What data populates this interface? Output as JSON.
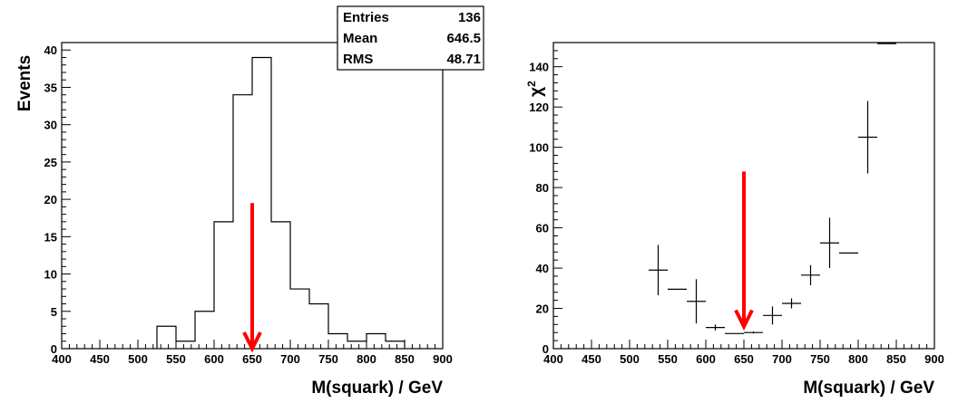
{
  "chart_data": [
    {
      "type": "histogram",
      "xlabel": "M(squark) / GeV",
      "ylabel": "Events",
      "xlim": [
        400,
        900
      ],
      "ylim": [
        0,
        41
      ],
      "xticks": [
        400,
        450,
        500,
        550,
        600,
        650,
        700,
        750,
        800,
        850,
        900
      ],
      "yticks": [
        0,
        5,
        10,
        15,
        20,
        25,
        30,
        35,
        40
      ],
      "bin_width": 25,
      "bins_low_edge": [
        525,
        550,
        575,
        600,
        625,
        650,
        675,
        700,
        725,
        750,
        775,
        800,
        825
      ],
      "values": [
        3,
        1,
        5,
        17,
        34,
        39,
        17,
        8,
        6,
        2,
        1,
        2,
        1
      ],
      "stats_box": {
        "rows": [
          {
            "label": "Entries",
            "value": "136"
          },
          {
            "label": "Mean",
            "value": "646.5"
          },
          {
            "label": "RMS",
            "value": "48.71"
          }
        ]
      },
      "arrow": {
        "x": 650,
        "y_top": 19.5,
        "y_tip": 0,
        "color": "#ff0000"
      }
    },
    {
      "type": "scatter",
      "xlabel": "M(squark) / GeV",
      "ylabel": "χ2",
      "xlim": [
        400,
        900
      ],
      "ylim": [
        0,
        152
      ],
      "xticks": [
        400,
        450,
        500,
        550,
        600,
        650,
        700,
        750,
        800,
        850,
        900
      ],
      "yticks": [
        0,
        20,
        40,
        60,
        80,
        100,
        120,
        140
      ],
      "x_halfwidth": 12.5,
      "points": [
        {
          "x": 537.5,
          "y": 39,
          "yerr": 12.5
        },
        {
          "x": 562.5,
          "y": 29.5,
          "yerr": 0
        },
        {
          "x": 587.5,
          "y": 23.5,
          "yerr": 11
        },
        {
          "x": 612.5,
          "y": 10.5,
          "yerr": 1.5
        },
        {
          "x": 637.5,
          "y": 7.5,
          "yerr": 0
        },
        {
          "x": 662.5,
          "y": 8,
          "yerr": 0.5
        },
        {
          "x": 687.5,
          "y": 16.5,
          "yerr": 4.5
        },
        {
          "x": 712.5,
          "y": 22.5,
          "yerr": 2.5
        },
        {
          "x": 737.5,
          "y": 36.5,
          "yerr": 5
        },
        {
          "x": 762.5,
          "y": 52.5,
          "yerr": 12.5
        },
        {
          "x": 787.5,
          "y": 47.5,
          "yerr": 0
        },
        {
          "x": 812.5,
          "y": 105,
          "yerr": 18
        },
        {
          "x": 837.5,
          "y": 151.5,
          "yerr": 0
        }
      ],
      "arrow": {
        "x": 650,
        "y_top": 88,
        "y_tip": 11,
        "color": "#ff0000"
      }
    }
  ]
}
